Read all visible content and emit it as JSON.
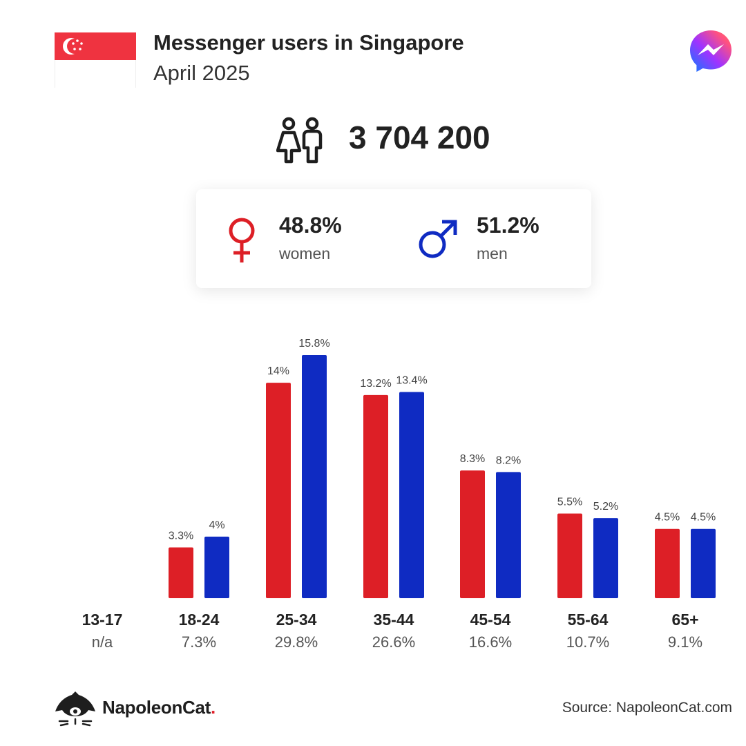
{
  "header": {
    "title": "Messenger users in Singapore",
    "subtitle": "April 2025"
  },
  "summary": {
    "total_users": "3 704 200",
    "women_pct": "48.8%",
    "women_label": "women",
    "men_pct": "51.2%",
    "men_label": "men"
  },
  "colors": {
    "women": "#dd1f26",
    "men": "#0f2bc2",
    "flag_red": "#ef3340"
  },
  "icons": {
    "flag": "singapore-flag-icon",
    "brand": "messenger-logo-icon",
    "users": "users-icon",
    "female": "female-symbol-icon",
    "male": "male-symbol-icon",
    "footer": "napoleoncat-logo-icon"
  },
  "chart_data": {
    "type": "bar",
    "categories": [
      "13-17",
      "18-24",
      "25-34",
      "35-44",
      "45-54",
      "55-64",
      "65+"
    ],
    "category_totals": [
      "n/a",
      "7.3%",
      "29.8%",
      "26.6%",
      "16.6%",
      "10.7%",
      "9.1%"
    ],
    "series": [
      {
        "values": [
          null,
          3.3,
          14,
          13.2,
          8.3,
          5.5,
          4.5
        ],
        "labels": [
          "",
          "3.3%",
          "14%",
          "13.2%",
          "8.3%",
          "5.5%",
          "4.5%"
        ]
      },
      {
        "values": [
          null,
          4,
          15.8,
          13.4,
          8.2,
          5.2,
          4.5
        ],
        "labels": [
          "",
          "4%",
          "15.8%",
          "13.4%",
          "8.2%",
          "5.2%",
          "4.5%"
        ]
      }
    ],
    "ylim": [
      0,
      15.8
    ],
    "grid": false,
    "legend": "none"
  },
  "footer": {
    "brand_name": "NapoleonCat",
    "brand_dot": ".",
    "source": "Source: NapoleonCat.com"
  }
}
